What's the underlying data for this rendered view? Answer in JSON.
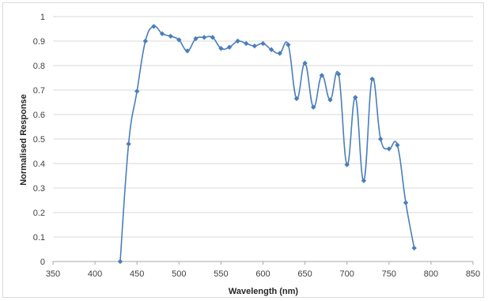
{
  "chart_data": {
    "type": "line",
    "title": "",
    "xlabel": "Wavelength (nm)",
    "ylabel": "Normalised Response",
    "xlim": [
      350,
      850
    ],
    "ylim": [
      0,
      1
    ],
    "x_ticks": [
      "350",
      "400",
      "450",
      "500",
      "550",
      "600",
      "650",
      "700",
      "750",
      "800",
      "850"
    ],
    "y_ticks": [
      "0",
      "0.1",
      "0.2",
      "0.3",
      "0.4",
      "0.5",
      "0.6",
      "0.7",
      "0.8",
      "0.9",
      "1"
    ],
    "grid": "horizontal",
    "legend": "none",
    "colors": {
      "series": "#4a7ebb",
      "grid": "#d9d9d9",
      "axis": "#a6a6a6"
    },
    "series": [
      {
        "marker": "diamond",
        "x": [
          430,
          440,
          450,
          460,
          470,
          480,
          490,
          500,
          510,
          520,
          530,
          540,
          550,
          560,
          570,
          580,
          590,
          600,
          610,
          620,
          630,
          640,
          650,
          660,
          670,
          680,
          690,
          700,
          710,
          720,
          730,
          740,
          750,
          760,
          770,
          780
        ],
        "y": [
          0.0,
          0.48,
          0.695,
          0.9,
          0.96,
          0.93,
          0.92,
          0.905,
          0.86,
          0.91,
          0.915,
          0.915,
          0.87,
          0.875,
          0.9,
          0.89,
          0.88,
          0.89,
          0.865,
          0.85,
          0.885,
          0.665,
          0.81,
          0.63,
          0.76,
          0.66,
          0.765,
          0.395,
          0.67,
          0.33,
          0.745,
          0.5,
          0.46,
          0.475,
          0.24,
          0.055
        ]
      }
    ]
  }
}
